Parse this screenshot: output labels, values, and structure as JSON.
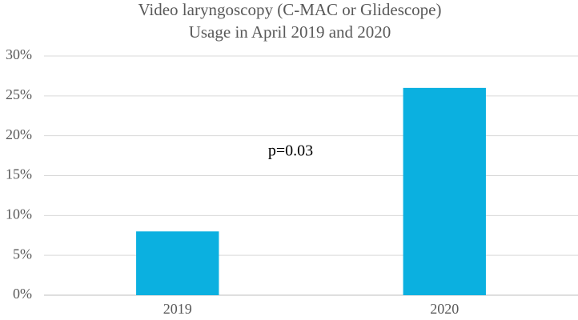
{
  "chart_data": {
    "type": "bar",
    "title": "Video laryngoscopy (C-MAC or Glidescope)",
    "subtitle": "Usage in April 2019 and 2020",
    "categories": [
      "2019",
      "2020"
    ],
    "values": [
      8,
      26
    ],
    "color": "#0bb0e0",
    "ylim": [
      0,
      30
    ],
    "yticks": [
      {
        "value": 0,
        "label": "0%"
      },
      {
        "value": 5,
        "label": "5%"
      },
      {
        "value": 10,
        "label": "10%"
      },
      {
        "value": 15,
        "label": "15%"
      },
      {
        "value": 20,
        "label": "20%"
      },
      {
        "value": 25,
        "label": "25%"
      },
      {
        "value": 30,
        "label": "30%"
      }
    ],
    "grid": true,
    "annotation": "p=0.03"
  }
}
